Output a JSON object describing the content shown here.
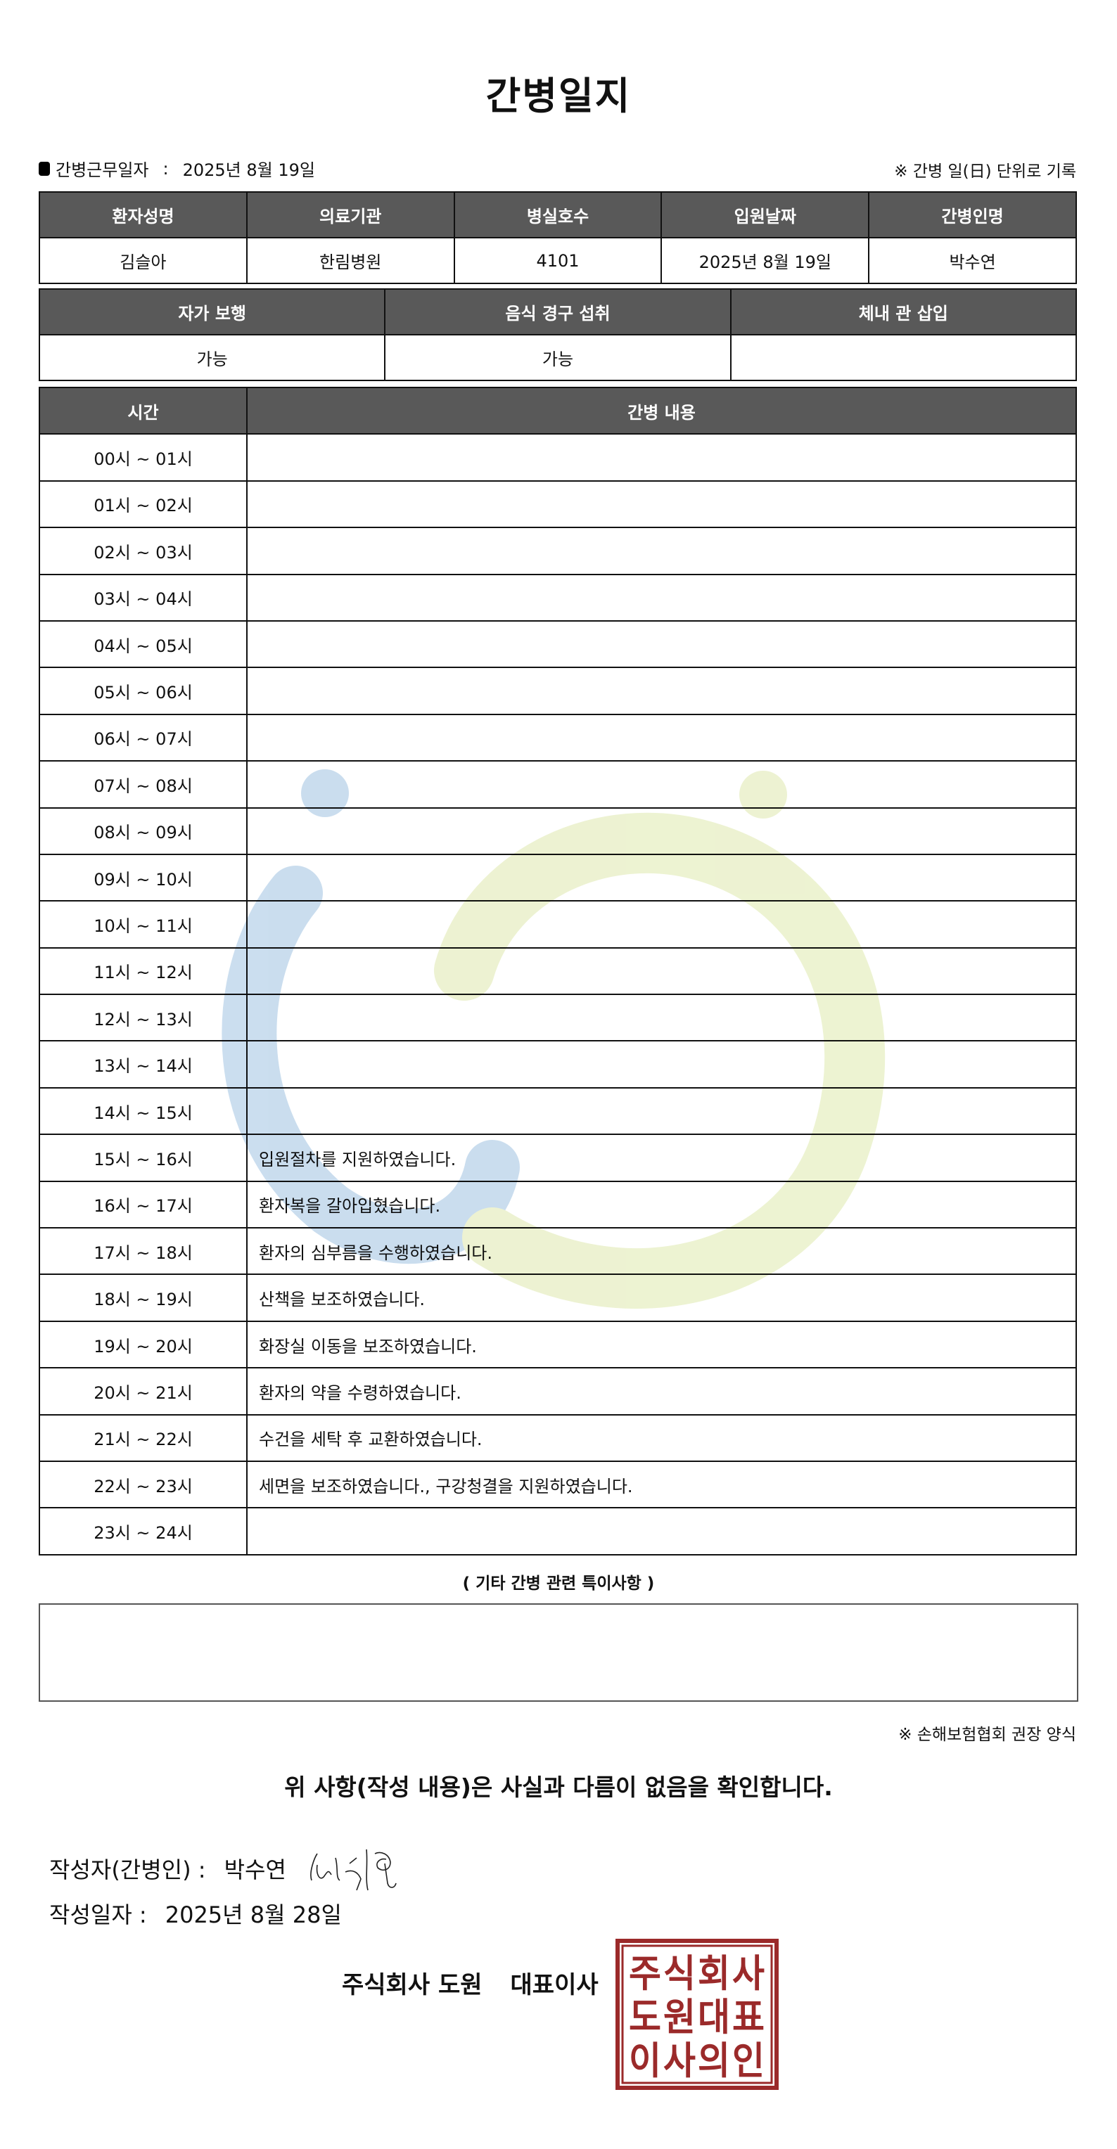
{
  "title": "간병일지",
  "work_date_label": "간병근무일자",
  "work_date_sep": ":",
  "work_date": "2025년 8월 19일",
  "unit_note": "※ 간병 일(日) 단위로 기록",
  "info": {
    "headers": [
      "환자성명",
      "의료기관",
      "병실호수",
      "입원날짜",
      "간병인명"
    ],
    "values": [
      "김슬아",
      "한림병원",
      "4101",
      "2025년 8월 19일",
      "박수연"
    ]
  },
  "status": {
    "headers": [
      "자가 보행",
      "음식 경구 섭취",
      "체내 관 삽입"
    ],
    "values": [
      "가능",
      "가능",
      ""
    ]
  },
  "log": {
    "headers": [
      "시간",
      "간병 내용"
    ],
    "rows": [
      {
        "time": "00시 ~ 01시",
        "content": ""
      },
      {
        "time": "01시 ~ 02시",
        "content": ""
      },
      {
        "time": "02시 ~ 03시",
        "content": ""
      },
      {
        "time": "03시 ~ 04시",
        "content": ""
      },
      {
        "time": "04시 ~ 05시",
        "content": ""
      },
      {
        "time": "05시 ~ 06시",
        "content": ""
      },
      {
        "time": "06시 ~ 07시",
        "content": ""
      },
      {
        "time": "07시 ~ 08시",
        "content": ""
      },
      {
        "time": "08시 ~ 09시",
        "content": ""
      },
      {
        "time": "09시 ~ 10시",
        "content": ""
      },
      {
        "time": "10시 ~ 11시",
        "content": ""
      },
      {
        "time": "11시 ~ 12시",
        "content": ""
      },
      {
        "time": "12시 ~ 13시",
        "content": ""
      },
      {
        "time": "13시 ~ 14시",
        "content": ""
      },
      {
        "time": "14시 ~ 15시",
        "content": ""
      },
      {
        "time": "15시 ~ 16시",
        "content": "입원절차를 지원하였습니다."
      },
      {
        "time": "16시 ~ 17시",
        "content": "환자복을 갈아입혔습니다."
      },
      {
        "time": "17시 ~ 18시",
        "content": "환자의 심부름을 수행하였습니다."
      },
      {
        "time": "18시 ~ 19시",
        "content": "산책을 보조하였습니다."
      },
      {
        "time": "19시 ~ 20시",
        "content": "화장실 이동을 보조하였습니다."
      },
      {
        "time": "20시 ~ 21시",
        "content": "환자의 약을 수령하였습니다."
      },
      {
        "time": "21시 ~ 22시",
        "content": "수건을 세탁 후 교환하였습니다."
      },
      {
        "time": "22시 ~ 23시",
        "content": "세면을 보조하였습니다., 구강청결을 지원하였습니다."
      },
      {
        "time": "23시 ~ 24시",
        "content": ""
      }
    ]
  },
  "other_title": "( 기타 간병 관련 특이사항 )",
  "other_notes": "",
  "form_note": "※ 손해보험협회 권장 양식",
  "confirm_text": "위 사항(작성 내용)은 사실과 다름이 없음을 확인합니다.",
  "writer_label": "작성자(간병인) :",
  "writer_name": "박수연",
  "write_date_label": "작성일자 :",
  "write_date": "2025년 8월 28일",
  "company": "주식회사 도원",
  "ceo_label": "대표이사",
  "stamp_text": "주식회사도원대표이사의인",
  "colors": {
    "header_bg": "#595959",
    "stamp": "#9b2a2a",
    "watermark_blue": "#c8dcee",
    "watermark_green": "#ecf2d0"
  }
}
